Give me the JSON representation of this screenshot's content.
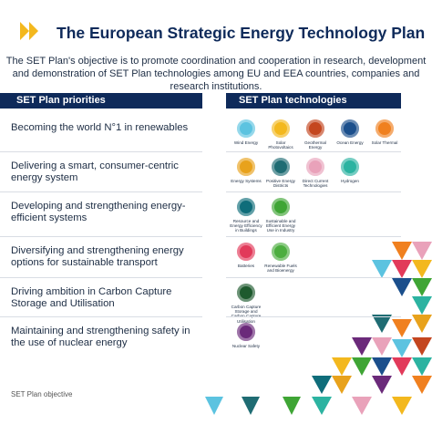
{
  "header": {
    "title": "The European Strategic Energy Technology Plan",
    "intro": "The SET Plan's objective is to promote coordination and cooperation in research, development and demonstration of SET Plan technologies among EU and EEA countries, companies and research institutions."
  },
  "columns": {
    "priorities": "SET Plan priorities",
    "technologies": "SET Plan technologies"
  },
  "rows": [
    {
      "priority": "Becoming the world N°1 in renewables",
      "technologies": [
        {
          "label": "Wind Energy",
          "color": "#5cc3e0"
        },
        {
          "label": "Solar Photovoltaics",
          "color": "#f3b81e"
        },
        {
          "label": "Geothermal Energy",
          "color": "#c4461f"
        },
        {
          "label": "Ocean Energy",
          "color": "#1b4f8c"
        },
        {
          "label": "Solar Thermal",
          "color": "#f0801f"
        }
      ]
    },
    {
      "priority": "Delivering a smart, consumer-centric energy system",
      "technologies": [
        {
          "label": "Energy Systems",
          "color": "#e8a21c"
        },
        {
          "label": "Positive Energy Districts",
          "color": "#1f6c73"
        },
        {
          "label": "Direct Current Technologies",
          "color": "#e9a2ba"
        },
        {
          "label": "Hydrogen",
          "color": "#2cb3a1"
        }
      ]
    },
    {
      "priority": "Developing and strengthening energy-efficient systems",
      "technologies": [
        {
          "label": "Resource and Energy Efficiency in Buildings",
          "color": "#0f6d7a"
        },
        {
          "label": "Sustainable and Efficient Energy Use in Industry",
          "color": "#3fa535"
        }
      ]
    },
    {
      "priority": "Diversifying and strengthening energy options for sustainable transport",
      "technologies": [
        {
          "label": "Batteries",
          "color": "#e23a5a"
        },
        {
          "label": "Renewable Fuels and Bioenergy",
          "color": "#4cae3f"
        }
      ]
    },
    {
      "priority": "Driving ambition in Carbon Capture Storage and Utilisation",
      "technologies": [
        {
          "label": "Carbon Capture Storage and Carbon Capture Utilisation",
          "color": "#1e5a2e"
        }
      ]
    },
    {
      "priority": "Maintaining and strengthening safety in the use of nuclear energy",
      "technologies": [
        {
          "label": "Nuclear Safety",
          "color": "#6b2a7a"
        }
      ]
    }
  ],
  "footer": "SET Plan objective"
}
